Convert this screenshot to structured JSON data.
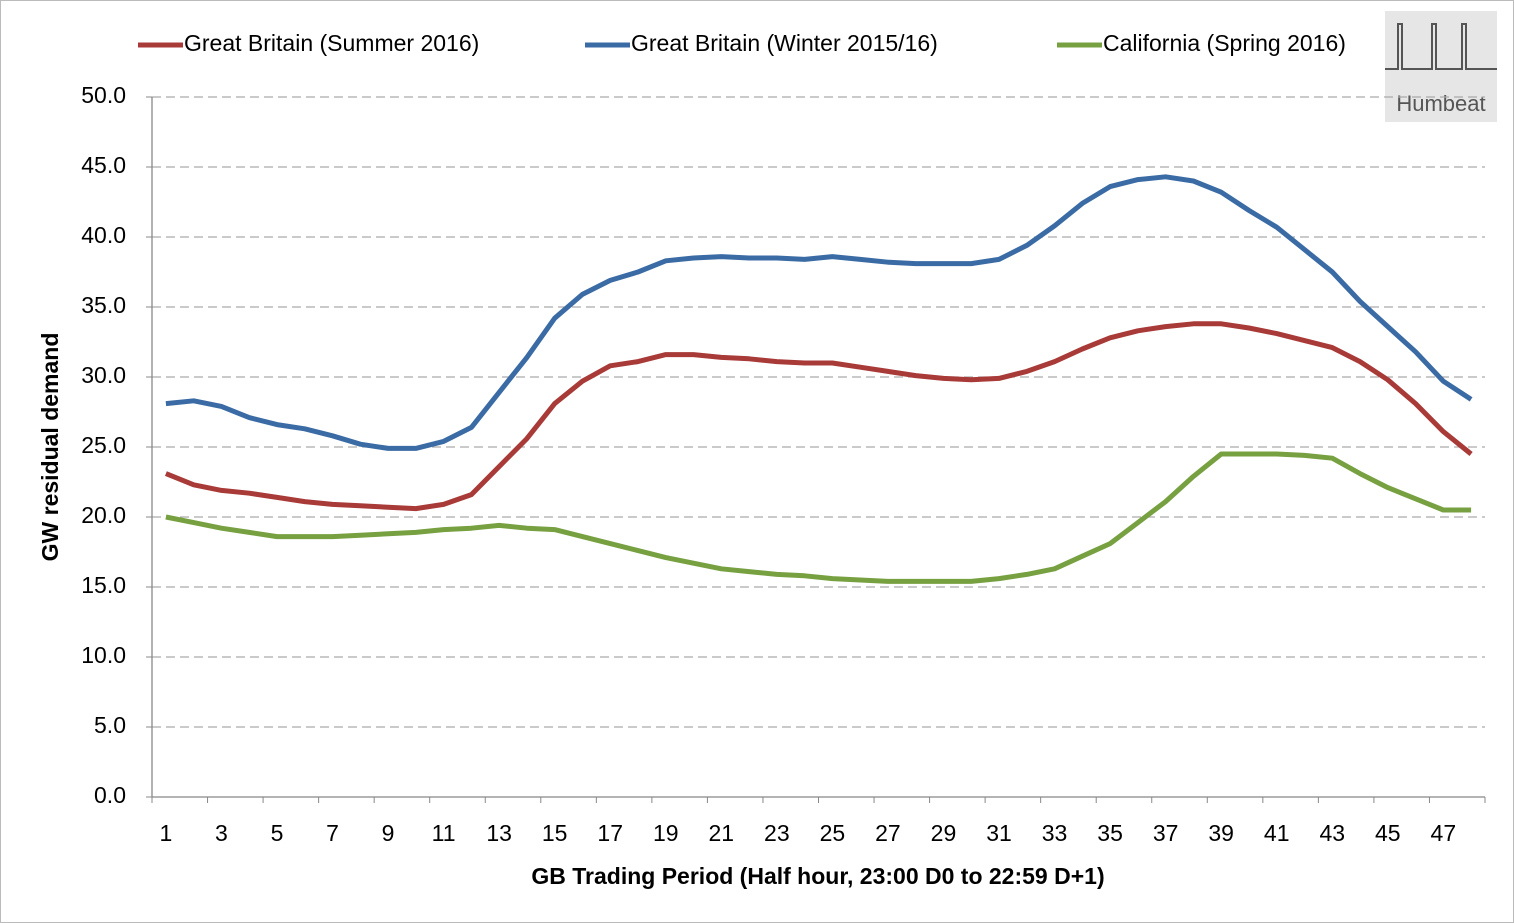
{
  "chart_data": {
    "type": "line",
    "annotation": "Humbeat",
    "x_label": "GB Trading Period (Half hour, 23:00 D0 to 22:59 D+1)",
    "y_label": "GW residual demand",
    "categories": [
      1,
      null,
      3,
      null,
      5,
      null,
      7,
      null,
      9,
      null,
      11,
      null,
      13,
      null,
      15,
      null,
      17,
      null,
      19,
      null,
      21,
      null,
      23,
      null,
      25,
      null,
      27,
      null,
      29,
      null,
      31,
      null,
      33,
      null,
      35,
      null,
      37,
      null,
      39,
      null,
      41,
      null,
      43,
      null,
      45,
      null,
      47,
      null
    ],
    "ylim": [
      0,
      50
    ],
    "yticks": [
      {
        "value": 0,
        "label": "0.0"
      },
      {
        "value": 5,
        "label": "5.0"
      },
      {
        "value": 10,
        "label": "10.0"
      },
      {
        "value": 15,
        "label": "15.0"
      },
      {
        "value": 20,
        "label": "20.0"
      },
      {
        "value": 25,
        "label": "25.0"
      },
      {
        "value": 30,
        "label": "30.0"
      },
      {
        "value": 35,
        "label": "35.0"
      },
      {
        "value": 40,
        "label": "40.0"
      },
      {
        "value": 45,
        "label": "45.0"
      },
      {
        "value": 50,
        "label": "50.0"
      }
    ],
    "grid": true,
    "legend": "top",
    "series": [
      {
        "name": "Great Britain (Summer 2016)",
        "color": "#a83a38",
        "values": [
          23.1,
          22.3,
          21.9,
          21.7,
          21.4,
          21.1,
          20.9,
          20.8,
          20.7,
          20.6,
          20.9,
          21.6,
          23.6,
          25.6,
          28.1,
          29.7,
          30.8,
          31.1,
          31.6,
          31.6,
          31.4,
          31.3,
          31.1,
          31.0,
          31.0,
          30.7,
          30.4,
          30.1,
          29.9,
          29.8,
          29.9,
          30.4,
          31.1,
          32.0,
          32.8,
          33.3,
          33.6,
          33.8,
          33.8,
          33.5,
          33.1,
          32.6,
          32.1,
          31.1,
          29.8,
          28.1,
          26.1,
          24.5
        ]
      },
      {
        "name": "Great Britain (Winter 2015/16)",
        "color": "#3b6ba4",
        "values": [
          28.1,
          28.3,
          27.9,
          27.1,
          26.6,
          26.3,
          25.8,
          25.2,
          24.9,
          24.9,
          25.4,
          26.4,
          28.9,
          31.4,
          34.2,
          35.9,
          36.9,
          37.5,
          38.3,
          38.5,
          38.6,
          38.5,
          38.5,
          38.4,
          38.6,
          38.4,
          38.2,
          38.1,
          38.1,
          38.1,
          38.4,
          39.4,
          40.8,
          42.4,
          43.6,
          44.1,
          44.3,
          44.0,
          43.2,
          41.9,
          40.7,
          39.1,
          37.5,
          35.4,
          33.6,
          31.8,
          29.7,
          28.4
        ]
      },
      {
        "name": "California (Spring 2016)",
        "color": "#77a041",
        "values": [
          20.0,
          19.6,
          19.2,
          18.9,
          18.6,
          18.6,
          18.6,
          18.7,
          18.8,
          18.9,
          19.1,
          19.2,
          19.4,
          19.2,
          19.1,
          18.6,
          18.1,
          17.6,
          17.1,
          16.7,
          16.3,
          16.1,
          15.9,
          15.8,
          15.6,
          15.5,
          15.4,
          15.4,
          15.4,
          15.4,
          15.6,
          15.9,
          16.3,
          17.2,
          18.1,
          19.6,
          21.1,
          22.9,
          24.5,
          24.5,
          24.5,
          24.4,
          24.2,
          23.1,
          22.1,
          21.3,
          20.5,
          20.5
        ]
      }
    ]
  }
}
